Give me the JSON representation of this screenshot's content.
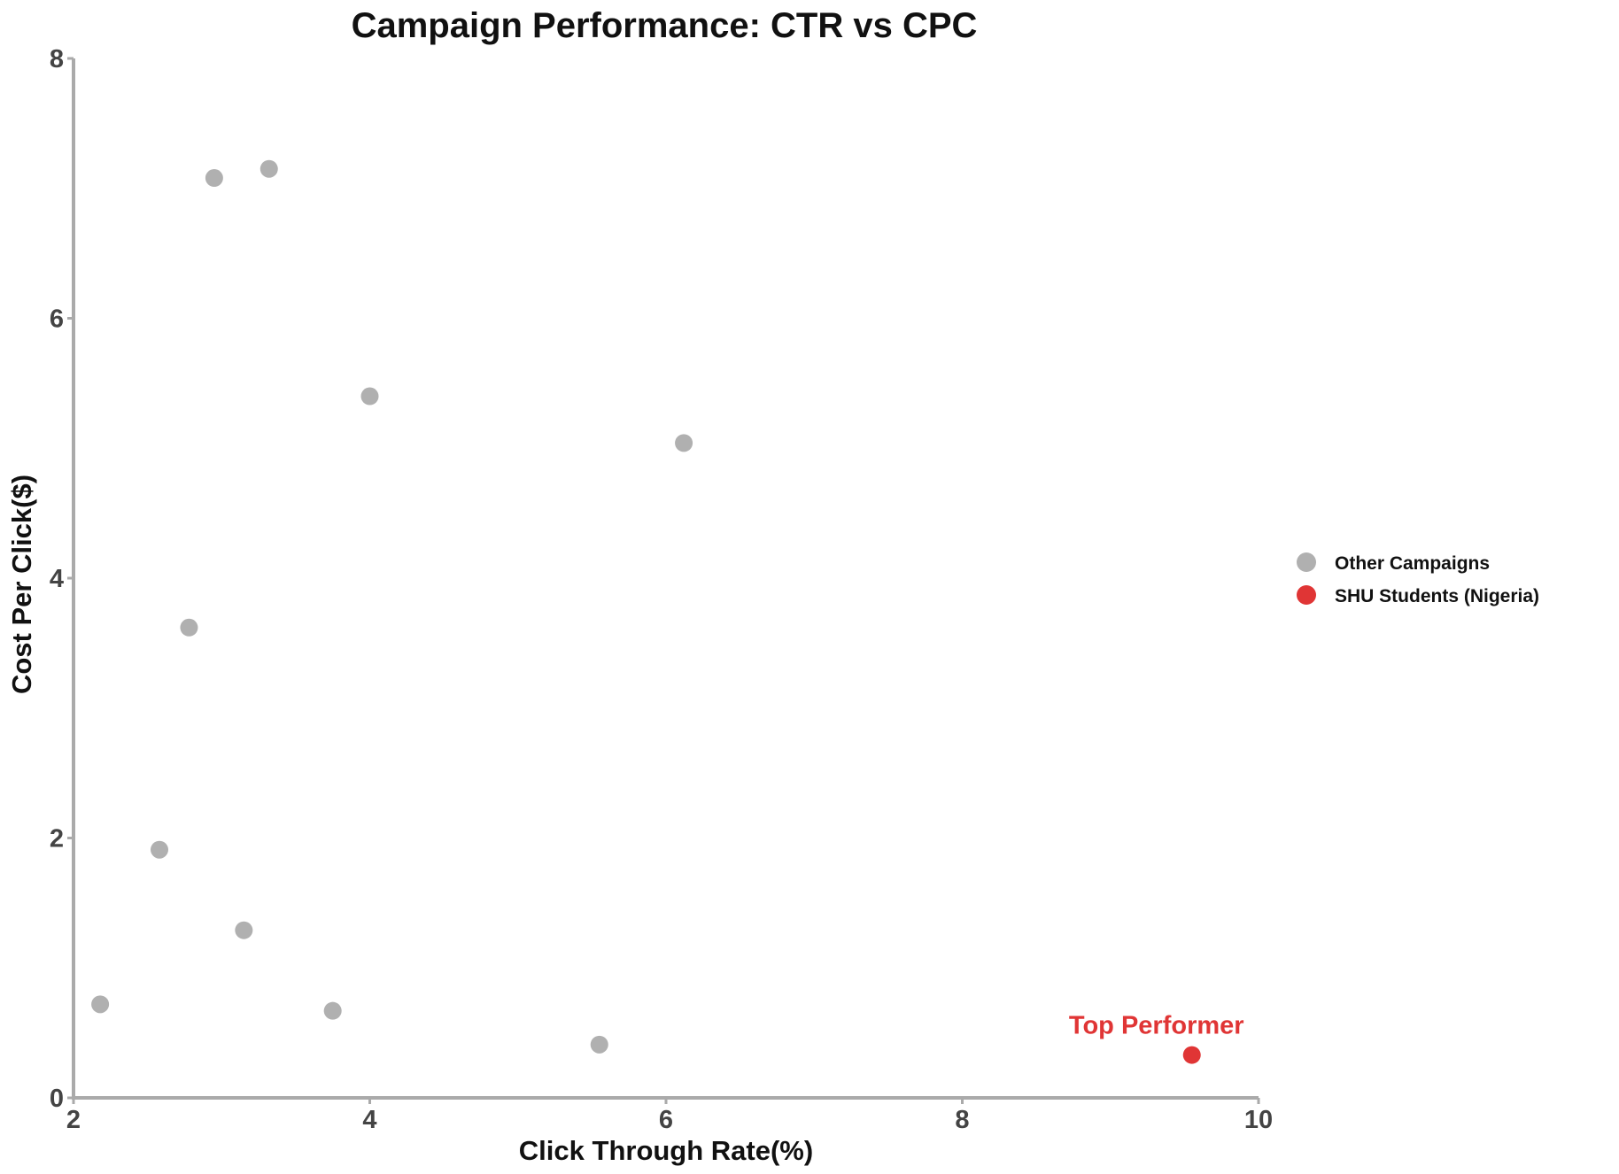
{
  "chart_data": {
    "type": "scatter",
    "title": "Campaign Performance: CTR vs CPC",
    "xlabel": "Click Through Rate(%)",
    "ylabel": "Cost Per Click($)",
    "xlim": [
      2,
      10
    ],
    "ylim": [
      0,
      8
    ],
    "xticks": [
      "2",
      "4",
      "6",
      "8",
      "10"
    ],
    "yticks": [
      "0",
      "2",
      "4",
      "6",
      "8"
    ],
    "grid": false,
    "legend_placement": "right",
    "series": [
      {
        "name": "Other Campaigns",
        "color": "#b0b0b0",
        "points": [
          {
            "x": 2.18,
            "y": 0.72
          },
          {
            "x": 2.58,
            "y": 1.91
          },
          {
            "x": 2.78,
            "y": 3.62
          },
          {
            "x": 2.95,
            "y": 7.08
          },
          {
            "x": 3.15,
            "y": 1.29
          },
          {
            "x": 3.32,
            "y": 7.15
          },
          {
            "x": 3.75,
            "y": 0.67
          },
          {
            "x": 4.0,
            "y": 5.4
          },
          {
            "x": 5.55,
            "y": 0.41
          },
          {
            "x": 6.12,
            "y": 5.04
          }
        ]
      },
      {
        "name": "SHU Students (Nigeria)",
        "color": "#e03535",
        "points": [
          {
            "x": 9.55,
            "y": 0.33
          }
        ]
      }
    ],
    "annotations": [
      {
        "text": "Top Performer",
        "x": 9.55,
        "y": 0.33,
        "color": "#e03535"
      }
    ]
  }
}
